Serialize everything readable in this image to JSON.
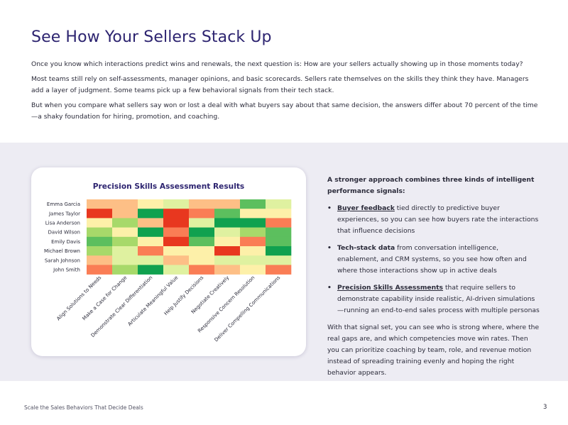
{
  "page": {
    "title": "See How Your Sellers Stack Up",
    "paragraphs": [
      "Once you know which interactions predict wins and renewals, the next question is: How are your sellers actually showing up in those moments today?",
      "Most teams still rely on self-assessments, manager opinions, and basic scorecards. Sellers rate themselves on the skills they think they have. Managers add a layer of judgment. Some teams pick up a few behavioral signals from their tech stack.",
      "But when you compare what sellers say won or lost a deal with what buyers say about that same decision, the answers differ about 70 percent of the time—a shaky foundation for hiring, promotion, and coaching."
    ]
  },
  "chart_data": {
    "type": "heatmap",
    "title": "Precision Skills Assessment Results",
    "rows": [
      "Emma Garcia",
      "James Taylor",
      "Lisa Anderson",
      "David Wilson",
      "Emily Davis",
      "Michael Brown",
      "Sarah Johnson",
      "John Smith"
    ],
    "columns": [
      "Align Solutions to Needs",
      "Make a Case for Change",
      "Demonstrate Clear Differentiation",
      "Articulate Meaningful Value",
      "Help Justify Decisions",
      "Negotiate Creatively",
      "Responsive Concern Resolution",
      "Deliver Compelling Communications"
    ],
    "color_scale": [
      "#e8371f",
      "#fa7d55",
      "#fdbf86",
      "#fdf0a9",
      "#dff1a0",
      "#a7d96a",
      "#5cbf5e",
      "#10a14f"
    ],
    "values": [
      [
        2,
        2,
        3,
        4,
        2,
        2,
        6,
        4
      ],
      [
        0,
        2,
        7,
        0,
        1,
        6,
        3,
        3
      ],
      [
        3,
        5,
        2,
        0,
        4,
        7,
        7,
        1
      ],
      [
        5,
        3,
        7,
        1,
        7,
        4,
        5,
        6
      ],
      [
        6,
        5,
        3,
        0,
        6,
        3,
        1,
        6
      ],
      [
        5,
        4,
        1,
        3,
        3,
        0,
        3,
        7
      ],
      [
        2,
        4,
        4,
        2,
        3,
        4,
        4,
        4
      ],
      [
        1,
        5,
        7,
        4,
        1,
        2,
        3,
        1
      ]
    ]
  },
  "signals": {
    "intro": "A stronger approach combines three kinds of intelligent performance signals:",
    "items": [
      {
        "lead": "Buyer feedback",
        "text": " tied directly to predictive buyer experiences, so you can see how buyers rate the interactions that influence decisions"
      },
      {
        "lead": "Tech-stack data",
        "text": " from conversation intelligence, enablement, and CRM systems, so you see how often and where those interactions show up in active deals"
      },
      {
        "lead": "Precision Skills Assessments",
        "text": " that require sellers to demonstrate capability inside realistic, AI-driven simulations—running an end-to-end sales process with multiple personas"
      }
    ],
    "bullet": "•",
    "closing": "With that signal set, you can see who is strong where, where the real gaps are, and which competencies move win rates. Then you can prioritize coaching by team, role, and revenue motion instead of spreading training evenly and hoping the right behavior appears."
  },
  "footer": {
    "text": "Scale the Sales Behaviors That Decide Deals",
    "page_number": "3"
  }
}
